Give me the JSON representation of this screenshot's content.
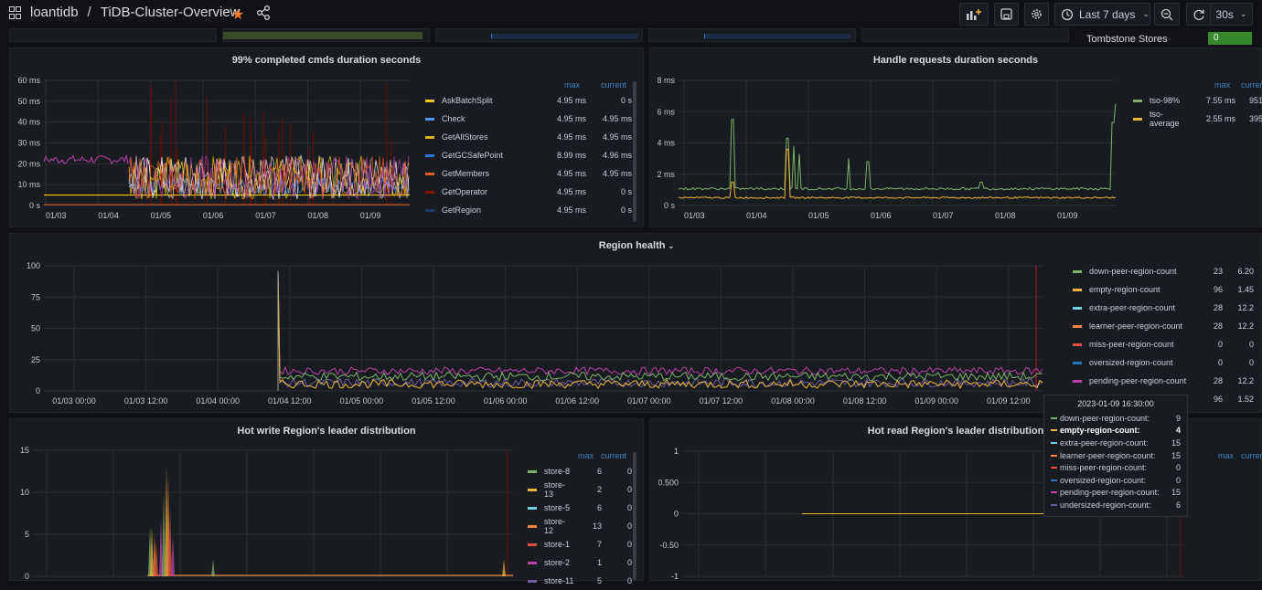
{
  "header": {
    "org": "loantidb",
    "separator": "/",
    "dashboard": "TiDB-Cluster-Overview",
    "time_range": "Last 7 days",
    "refresh": "30s"
  },
  "top_row": {
    "tombstone_label": "Tombstone Stores",
    "tombstone_value": "0"
  },
  "panel_cmds": {
    "title": "99% completed cmds duration seconds",
    "y_ticks": [
      "60 ms",
      "50 ms",
      "40 ms",
      "30 ms",
      "20 ms",
      "10 ms",
      "0 s"
    ],
    "x_ticks": [
      "01/03",
      "01/04",
      "01/05",
      "01/06",
      "01/07",
      "01/08",
      "01/09"
    ],
    "legend_max": "max",
    "legend_current": "current",
    "legend": [
      {
        "name": "AskBatchSplit",
        "color": "#f2cc0c",
        "max": "4.95 ms",
        "current": "0 s"
      },
      {
        "name": "Check",
        "color": "#5794f2",
        "max": "4.95 ms",
        "current": "4.95 ms"
      },
      {
        "name": "GetAllStores",
        "color": "#e0b400",
        "max": "4.95 ms",
        "current": "4.95 ms"
      },
      {
        "name": "GetGCSafePoint",
        "color": "#3274d9",
        "max": "8.99 ms",
        "current": "4.96 ms"
      },
      {
        "name": "GetMembers",
        "color": "#e55f24",
        "max": "4.95 ms",
        "current": "4.95 ms"
      },
      {
        "name": "GetOperator",
        "color": "#890f02",
        "max": "4.95 ms",
        "current": "0 s"
      },
      {
        "name": "GetRegion",
        "color": "#1f3c6e",
        "max": "4.95 ms",
        "current": "0 s"
      }
    ]
  },
  "panel_handle": {
    "title": "Handle requests duration seconds",
    "y_ticks": [
      "8 ms",
      "6 ms",
      "4 ms",
      "2 ms",
      "0 s"
    ],
    "x_ticks": [
      "01/03",
      "01/04",
      "01/05",
      "01/06",
      "01/07",
      "01/08",
      "01/09"
    ],
    "legend_max": "max",
    "legend_current": "current",
    "legend": [
      {
        "name": "tso-98%",
        "color": "#7eb26d",
        "max": "7.55 ms",
        "current": "951"
      },
      {
        "name": "tso-average",
        "color": "#eab839",
        "max": "2.55 ms",
        "current": "395"
      }
    ]
  },
  "panel_region": {
    "title": "Region health",
    "y_ticks": [
      "100",
      "75",
      "50",
      "25",
      "0"
    ],
    "x_ticks": [
      "01/03 00:00",
      "01/03 12:00",
      "01/04 00:00",
      "01/04 12:00",
      "01/05 00:00",
      "01/05 12:00",
      "01/06 00:00",
      "01/06 12:00",
      "01/07 00:00",
      "01/07 12:00",
      "01/08 00:00",
      "01/08 12:00",
      "01/09 00:00",
      "01/09 12:00"
    ],
    "legend": [
      {
        "name": "down-peer-region-count",
        "color": "#7eb26d",
        "max": "23",
        "current": "6.20"
      },
      {
        "name": "empty-region-count",
        "color": "#eab839",
        "max": "96",
        "current": "1.45"
      },
      {
        "name": "extra-peer-region-count",
        "color": "#6ed0e0",
        "max": "28",
        "current": "12.2"
      },
      {
        "name": "learner-peer-region-count",
        "color": "#ef843c",
        "max": "28",
        "current": "12.2"
      },
      {
        "name": "miss-peer-region-count",
        "color": "#e24d42",
        "max": "0",
        "current": "0"
      },
      {
        "name": "oversized-region-count",
        "color": "#1f78c1",
        "max": "0",
        "current": "0"
      },
      {
        "name": "pending-peer-region-count",
        "color": "#ba43a9",
        "max": "28",
        "current": "12.2"
      },
      {
        "name": "undersized-region-count",
        "color": "#705da0",
        "max": "96",
        "current": "1.52"
      }
    ]
  },
  "tooltip": {
    "time": "2023-01-09 16:30:00",
    "rows": [
      {
        "name": "down-peer-region-count:",
        "color": "#7eb26d",
        "value": "9"
      },
      {
        "name": "empty-region-count:",
        "color": "#eab839",
        "value": "4",
        "highlight": true
      },
      {
        "name": "extra-peer-region-count:",
        "color": "#6ed0e0",
        "value": "15"
      },
      {
        "name": "learner-peer-region-count:",
        "color": "#ef843c",
        "value": "15"
      },
      {
        "name": "miss-peer-region-count:",
        "color": "#e24d42",
        "value": "0"
      },
      {
        "name": "oversized-region-count:",
        "color": "#1f78c1",
        "value": "0"
      },
      {
        "name": "pending-peer-region-count:",
        "color": "#ba43a9",
        "value": "15"
      },
      {
        "name": "undersized-region-count:",
        "color": "#705da0",
        "value": "6"
      }
    ]
  },
  "panel_hot_write": {
    "title": "Hot write Region's leader distribution",
    "y_ticks": [
      "15",
      "10",
      "5",
      "0"
    ],
    "legend_max": "max",
    "legend_current": "current",
    "legend": [
      {
        "name": "store-8",
        "color": "#7eb26d",
        "max": "6",
        "current": "0"
      },
      {
        "name": "store-13",
        "color": "#eab839",
        "max": "2",
        "current": "0"
      },
      {
        "name": "store-5",
        "color": "#6ed0e0",
        "max": "6",
        "current": "0"
      },
      {
        "name": "store-12",
        "color": "#ef843c",
        "max": "13",
        "current": "0"
      },
      {
        "name": "store-1",
        "color": "#e24d42",
        "max": "7",
        "current": "0"
      },
      {
        "name": "store-2",
        "color": "#ba43a9",
        "max": "1",
        "current": "0"
      },
      {
        "name": "store-11",
        "color": "#705da0",
        "max": "5",
        "current": "0"
      }
    ]
  },
  "panel_hot_read": {
    "title": "Hot read Region's leader distribution",
    "y_ticks": [
      "1",
      "0.500",
      "0",
      "-0.50",
      "-1"
    ],
    "legend_max": "max",
    "legend_current": "current"
  }
}
